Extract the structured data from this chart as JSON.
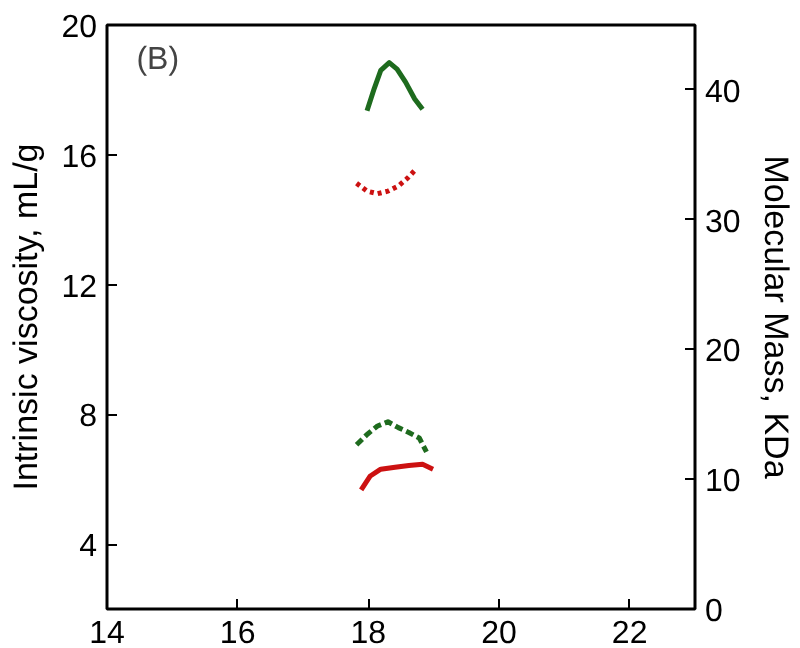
{
  "chart_data": {
    "type": "line",
    "xlabel": null,
    "ylabel": "Intrinsic viscosity, mL/g",
    "y2label": "Molecular Mass, KDa",
    "annotations": [
      "(B)"
    ],
    "xlim": [
      14,
      23
    ],
    "xticks": [
      14,
      16,
      18,
      20,
      22
    ],
    "ylim": [
      2,
      20
    ],
    "yticks": [
      4,
      8,
      12,
      16,
      20
    ],
    "y2lim": [
      0,
      45
    ],
    "y2ticks": [
      0,
      10,
      20,
      30,
      40
    ],
    "grid": false,
    "marker": "none",
    "series": [
      {
        "color": "#1e6b1e",
        "axis": "y2",
        "line_style": "solid",
        "x": [
          17.98,
          18.09,
          18.19,
          18.32,
          18.44,
          18.57,
          18.71,
          18.83
        ],
        "values": [
          38.4,
          40.1,
          41.5,
          42.1,
          41.6,
          40.6,
          39.3,
          38.5
        ]
      },
      {
        "color": "#cc1111",
        "axis": "y2",
        "line_style": "dotted",
        "x": [
          17.82,
          17.98,
          18.14,
          18.3,
          18.46,
          18.6,
          18.73
        ],
        "values": [
          32.8,
          32.2,
          32.0,
          32.2,
          32.6,
          33.2,
          33.9
        ]
      },
      {
        "color": "#1e6b1e",
        "line_style": "dashed",
        "x": [
          17.82,
          17.98,
          18.14,
          18.3,
          18.46,
          18.62,
          18.78,
          18.89
        ],
        "values": [
          7.06,
          7.38,
          7.64,
          7.77,
          7.59,
          7.44,
          7.27,
          6.84
        ]
      },
      {
        "color": "#cc1111",
        "line_style": "solid",
        "x": [
          17.89,
          18.03,
          18.19,
          18.41,
          18.62,
          18.83,
          18.99
        ],
        "values": [
          5.67,
          6.1,
          6.31,
          6.37,
          6.42,
          6.46,
          6.31
        ]
      }
    ]
  }
}
